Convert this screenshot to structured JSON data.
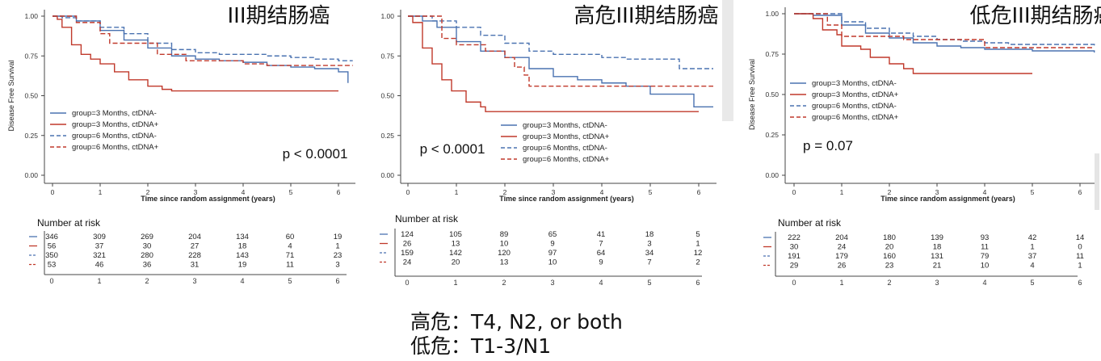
{
  "chart_data": [
    {
      "type": "line",
      "subtype": "kaplan-meier",
      "title": "III期结肠癌",
      "ylabel": "Disease Free Survival",
      "xlabel": "Time since random assignment (years)",
      "xlim": [
        0,
        6.3
      ],
      "ylim": [
        0,
        1
      ],
      "x_ticks": [
        "0",
        "1",
        "2",
        "3",
        "4",
        "5",
        "6"
      ],
      "y_ticks": [
        "0.00",
        "0.25",
        "0.50",
        "0.75",
        "1.00"
      ],
      "pvalue": "p < 0.0001",
      "series": [
        {
          "name": "group=3 Months, ctDNA-",
          "color": "#4a72b0",
          "dash": false,
          "points": [
            [
              0,
              1
            ],
            [
              0.2,
              1
            ],
            [
              0.5,
              0.97
            ],
            [
              1,
              0.91
            ],
            [
              1.5,
              0.85
            ],
            [
              2,
              0.8
            ],
            [
              2.5,
              0.75
            ],
            [
              3,
              0.73
            ],
            [
              3.5,
              0.72
            ],
            [
              4,
              0.71
            ],
            [
              4.5,
              0.69
            ],
            [
              5,
              0.68
            ],
            [
              5.5,
              0.67
            ],
            [
              6,
              0.65
            ],
            [
              6.2,
              0.58
            ]
          ]
        },
        {
          "name": "group=3 Months, ctDNA+",
          "color": "#c0392b",
          "dash": false,
          "points": [
            [
              0,
              1
            ],
            [
              0.1,
              0.98
            ],
            [
              0.2,
              0.93
            ],
            [
              0.4,
              0.82
            ],
            [
              0.6,
              0.76
            ],
            [
              0.8,
              0.73
            ],
            [
              1,
              0.7
            ],
            [
              1.3,
              0.65
            ],
            [
              1.6,
              0.6
            ],
            [
              2,
              0.56
            ],
            [
              2.3,
              0.54
            ],
            [
              2.5,
              0.53
            ],
            [
              4,
              0.53
            ],
            [
              6,
              0.53
            ]
          ]
        },
        {
          "name": "group=6 Months, ctDNA-",
          "color": "#4a72b0",
          "dash": true,
          "points": [
            [
              0,
              1
            ],
            [
              0.2,
              0.99
            ],
            [
              0.5,
              0.97
            ],
            [
              1,
              0.93
            ],
            [
              1.5,
              0.89
            ],
            [
              2,
              0.83
            ],
            [
              2.5,
              0.79
            ],
            [
              3,
              0.77
            ],
            [
              3.5,
              0.76
            ],
            [
              4,
              0.76
            ],
            [
              4.5,
              0.75
            ],
            [
              5,
              0.74
            ],
            [
              5.5,
              0.73
            ],
            [
              6,
              0.72
            ],
            [
              6.3,
              0.72
            ]
          ]
        },
        {
          "name": "group=6 Months, ctDNA+",
          "color": "#c0392b",
          "dash": true,
          "points": [
            [
              0,
              1
            ],
            [
              0.2,
              1
            ],
            [
              0.5,
              0.96
            ],
            [
              1,
              0.89
            ],
            [
              1.2,
              0.83
            ],
            [
              2,
              0.83
            ],
            [
              2.2,
              0.76
            ],
            [
              2.7,
              0.76
            ],
            [
              2.8,
              0.72
            ],
            [
              3.8,
              0.72
            ],
            [
              4,
              0.7
            ],
            [
              4.5,
              0.69
            ],
            [
              6.3,
              0.69
            ]
          ]
        }
      ],
      "risk_table": {
        "title": "Number at risk",
        "times": [
          "0",
          "1",
          "2",
          "3",
          "4",
          "5",
          "6"
        ],
        "rows": [
          [
            "346",
            "309",
            "269",
            "204",
            "134",
            "60",
            "19"
          ],
          [
            "56",
            "37",
            "30",
            "27",
            "18",
            "4",
            "1"
          ],
          [
            "350",
            "321",
            "280",
            "228",
            "143",
            "71",
            "23"
          ],
          [
            "53",
            "46",
            "36",
            "31",
            "19",
            "11",
            "3"
          ]
        ]
      }
    },
    {
      "type": "line",
      "subtype": "kaplan-meier",
      "title": "高危III期结肠癌",
      "ylabel": "",
      "xlabel": "Time since random assignment (years)",
      "xlim": [
        0,
        6.3
      ],
      "ylim": [
        0,
        1
      ],
      "x_ticks": [
        "0",
        "1",
        "2",
        "3",
        "4",
        "5",
        "6"
      ],
      "y_ticks": [
        "0.00",
        "0.25",
        "0.50",
        "0.75",
        "1.00"
      ],
      "pvalue": "p < 0.0001",
      "series": [
        {
          "name": "group=3 Months, ctDNA-",
          "color": "#4a72b0",
          "dash": false,
          "points": [
            [
              0,
              1
            ],
            [
              0.3,
              0.97
            ],
            [
              0.6,
              0.93
            ],
            [
              1,
              0.84
            ],
            [
              1.5,
              0.78
            ],
            [
              2,
              0.74
            ],
            [
              2.5,
              0.67
            ],
            [
              3,
              0.62
            ],
            [
              3.5,
              0.6
            ],
            [
              4,
              0.58
            ],
            [
              4.5,
              0.56
            ],
            [
              5,
              0.56
            ],
            [
              5,
              0.51
            ],
            [
              5.5,
              0.51
            ],
            [
              5.9,
              0.43
            ],
            [
              6.3,
              0.43
            ]
          ]
        },
        {
          "name": "group=3 Months, ctDNA+",
          "color": "#c0392b",
          "dash": false,
          "points": [
            [
              0,
              1
            ],
            [
              0.1,
              0.96
            ],
            [
              0.3,
              0.8
            ],
            [
              0.5,
              0.7
            ],
            [
              0.7,
              0.6
            ],
            [
              0.9,
              0.53
            ],
            [
              1.2,
              0.46
            ],
            [
              1.5,
              0.43
            ],
            [
              1.6,
              0.4
            ],
            [
              4,
              0.4
            ],
            [
              6,
              0.4
            ]
          ]
        },
        {
          "name": "group=6 Months, ctDNA-",
          "color": "#4a72b0",
          "dash": true,
          "points": [
            [
              0,
              1
            ],
            [
              0.5,
              0.97
            ],
            [
              1,
              0.93
            ],
            [
              1.5,
              0.88
            ],
            [
              2,
              0.83
            ],
            [
              2.5,
              0.78
            ],
            [
              3,
              0.76
            ],
            [
              4,
              0.74
            ],
            [
              4.5,
              0.73
            ],
            [
              5.5,
              0.73
            ],
            [
              5.6,
              0.67
            ],
            [
              6.3,
              0.67
            ]
          ]
        },
        {
          "name": "group=6 Months, ctDNA+",
          "color": "#c0392b",
          "dash": true,
          "points": [
            [
              0,
              1
            ],
            [
              0.2,
              1
            ],
            [
              0.7,
              0.86
            ],
            [
              1,
              0.82
            ],
            [
              1.5,
              0.82
            ],
            [
              1.6,
              0.78
            ],
            [
              2,
              0.74
            ],
            [
              2.2,
              0.68
            ],
            [
              2.4,
              0.63
            ],
            [
              2.5,
              0.56
            ],
            [
              4,
              0.56
            ],
            [
              6.3,
              0.56
            ]
          ]
        }
      ],
      "risk_table": {
        "title": "Number at risk",
        "times": [
          "0",
          "1",
          "2",
          "3",
          "4",
          "5",
          "6"
        ],
        "rows": [
          [
            "124",
            "105",
            "89",
            "65",
            "41",
            "18",
            "5"
          ],
          [
            "26",
            "13",
            "10",
            "9",
            "7",
            "3",
            "1"
          ],
          [
            "159",
            "142",
            "120",
            "97",
            "64",
            "34",
            "12"
          ],
          [
            "24",
            "20",
            "13",
            "10",
            "9",
            "7",
            "2"
          ]
        ]
      }
    },
    {
      "type": "line",
      "subtype": "kaplan-meier",
      "title": "低危III期结肠癌",
      "ylabel": "Disease Free Survival",
      "xlabel": "Time since random assignment (years)",
      "xlim": [
        0,
        6.3
      ],
      "ylim": [
        0,
        1
      ],
      "x_ticks": [
        "0",
        "1",
        "2",
        "3",
        "4",
        "5",
        "6"
      ],
      "y_ticks": [
        "0.00",
        "0.25",
        "0.50",
        "0.75",
        "1.00"
      ],
      "pvalue": "p = 0.07",
      "series": [
        {
          "name": "group=3 Months, ctDNA-",
          "color": "#4a72b0",
          "dash": false,
          "points": [
            [
              0,
              1
            ],
            [
              0.4,
              0.99
            ],
            [
              1,
              0.93
            ],
            [
              1.5,
              0.88
            ],
            [
              2,
              0.85
            ],
            [
              2.5,
              0.82
            ],
            [
              3,
              0.8
            ],
            [
              3.5,
              0.79
            ],
            [
              4,
              0.78
            ],
            [
              5,
              0.77
            ],
            [
              6.3,
              0.76
            ]
          ]
        },
        {
          "name": "group=3 Months, ctDNA+",
          "color": "#c0392b",
          "dash": false,
          "points": [
            [
              0,
              1
            ],
            [
              0.4,
              0.97
            ],
            [
              0.6,
              0.9
            ],
            [
              0.9,
              0.87
            ],
            [
              1,
              0.8
            ],
            [
              1.4,
              0.78
            ],
            [
              1.6,
              0.73
            ],
            [
              2,
              0.69
            ],
            [
              2.3,
              0.66
            ],
            [
              2.5,
              0.63
            ],
            [
              4,
              0.63
            ],
            [
              5,
              0.63
            ]
          ]
        },
        {
          "name": "group=6 Months, ctDNA-",
          "color": "#4a72b0",
          "dash": true,
          "points": [
            [
              0,
              1
            ],
            [
              0.4,
              1
            ],
            [
              1,
              0.95
            ],
            [
              1.5,
              0.91
            ],
            [
              2,
              0.88
            ],
            [
              2.5,
              0.86
            ],
            [
              3,
              0.84
            ],
            [
              3.5,
              0.83
            ],
            [
              4,
              0.82
            ],
            [
              4.5,
              0.81
            ],
            [
              5,
              0.81
            ],
            [
              6.3,
              0.8
            ]
          ]
        },
        {
          "name": "group=6 Months, ctDNA+",
          "color": "#c0392b",
          "dash": true,
          "points": [
            [
              0,
              1
            ],
            [
              0.5,
              1
            ],
            [
              0.7,
              0.93
            ],
            [
              1,
              0.86
            ],
            [
              2,
              0.86
            ],
            [
              2.3,
              0.84
            ],
            [
              3,
              0.84
            ],
            [
              3.8,
              0.84
            ],
            [
              4,
              0.79
            ],
            [
              6.3,
              0.79
            ]
          ]
        }
      ],
      "risk_table": {
        "title": "Number at risk",
        "times": [
          "0",
          "1",
          "2",
          "3",
          "4",
          "5",
          "6"
        ],
        "rows": [
          [
            "222",
            "204",
            "180",
            "139",
            "93",
            "42",
            "14"
          ],
          [
            "30",
            "24",
            "20",
            "18",
            "11",
            "1",
            "0"
          ],
          [
            "191",
            "179",
            "160",
            "131",
            "79",
            "37",
            "11"
          ],
          [
            "29",
            "26",
            "23",
            "21",
            "10",
            "4",
            "1"
          ]
        ]
      }
    }
  ],
  "footnote": {
    "high_risk": "高危：T4, N2, or both",
    "low_risk": "低危：T1-3/N1"
  }
}
